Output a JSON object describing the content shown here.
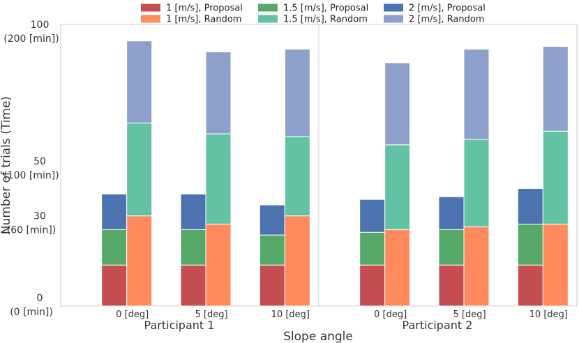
{
  "chart_data": {
    "type": "bar",
    "stacked": true,
    "xlabel": "Slope angle",
    "ylabel": "Number of trials (Time)",
    "ylim": [
      0,
      100
    ],
    "yticks": [
      {
        "value": 0,
        "line1": "0",
        "line2": "(0 [min])"
      },
      {
        "value": 30,
        "line1": "30",
        "line2": "(60 [min])"
      },
      {
        "value": 50,
        "line1": "50",
        "line2": "(100 [min])"
      },
      {
        "value": 100,
        "line1": "100",
        "line2": "(200 [min])"
      }
    ],
    "legend": {
      "position": "top",
      "entries": [
        {
          "label": "1 [m/s], Proposal",
          "color": "#c44e52"
        },
        {
          "label": "1 [m/s], Random",
          "color": "#fe8a5e"
        },
        {
          "label": "1.5 [m/s], Proposal",
          "color": "#55a868"
        },
        {
          "label": "1.5 [m/s], Random",
          "color": "#63c2a3"
        },
        {
          "label": "2 [m/s], Proposal",
          "color": "#4c72b0"
        },
        {
          "label": "2 [m/s], Random",
          "color": "#8da0cb"
        }
      ]
    },
    "panels": [
      {
        "label": "Participant 1",
        "categories": [
          "0 [deg]",
          "5 [deg]",
          "10 [deg]"
        ],
        "proposal": {
          "1 [m/s]": [
            15,
            15,
            15
          ],
          "1.5 [m/s]": [
            13,
            13,
            11
          ],
          "2 [m/s]": [
            13,
            13,
            11
          ]
        },
        "random": {
          "1 [m/s]": [
            33,
            30,
            33
          ],
          "1.5 [m/s]": [
            34,
            33,
            29
          ],
          "2 [m/s]": [
            30,
            30,
            32
          ]
        }
      },
      {
        "label": "Participant 2",
        "categories": [
          "0 [deg]",
          "5 [deg]",
          "10 [deg]"
        ],
        "proposal": {
          "1 [m/s]": [
            15,
            15,
            15
          ],
          "1.5 [m/s]": [
            12,
            13,
            15
          ],
          "2 [m/s]": [
            12,
            12,
            13
          ]
        },
        "random": {
          "1 [m/s]": [
            28,
            29,
            30
          ],
          "1.5 [m/s]": [
            31,
            32,
            34
          ],
          "2 [m/s]": [
            30,
            33,
            31
          ]
        }
      }
    ]
  }
}
